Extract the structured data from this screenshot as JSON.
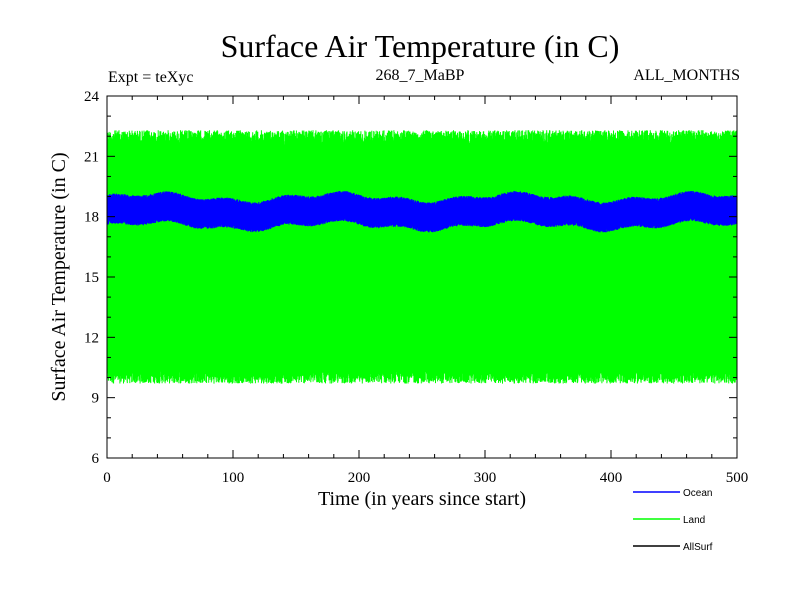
{
  "chart_data": {
    "type": "line",
    "title": "Surface Air Temperature (in C)",
    "subtitle_left": "Expt = teXyc",
    "subtitle_center": "268_7_MaBP",
    "subtitle_right": "ALL_MONTHS",
    "xlabel": "Time (in years since start)",
    "ylabel": "Surface Air Temperature (in C)",
    "xlim": [
      0,
      500
    ],
    "ylim": [
      6,
      24
    ],
    "x_ticks": [
      0,
      100,
      200,
      300,
      400,
      500
    ],
    "y_ticks": [
      6,
      9,
      12,
      15,
      18,
      21,
      24
    ],
    "legend_position": "bottom-right",
    "grid": false,
    "series": [
      {
        "name": "Ocean",
        "color": "#0000ff",
        "monthly_min": 17.5,
        "monthly_max": 19.0,
        "mean": 18.2
      },
      {
        "name": "Land",
        "color": "#00ff00",
        "monthly_min": 9.7,
        "monthly_max": 22.3,
        "mean": 16.0
      },
      {
        "name": "AllSurf",
        "color": "#000000"
      }
    ]
  }
}
